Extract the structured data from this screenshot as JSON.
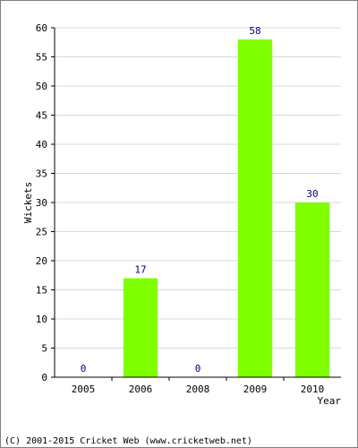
{
  "chart_data": {
    "type": "bar",
    "categories": [
      "2005",
      "2006",
      "2008",
      "2009",
      "2010"
    ],
    "values": [
      0,
      17,
      0,
      58,
      30
    ],
    "data_labels": [
      "0",
      "17",
      "0",
      "58",
      "30"
    ],
    "title": "",
    "xlabel": "Year",
    "ylabel": "Wickets",
    "ylim": [
      0,
      60
    ],
    "yticks": [
      0,
      5,
      10,
      15,
      20,
      25,
      30,
      35,
      40,
      45,
      50,
      55,
      60
    ],
    "grid": true,
    "legend": "none",
    "bar_color": "#80ff00",
    "data_label_color": "#000080",
    "gridline_color": "#d8d8d8"
  },
  "footer": {
    "copyright": "(C) 2001-2015 Cricket Web (www.cricketweb.net)"
  }
}
